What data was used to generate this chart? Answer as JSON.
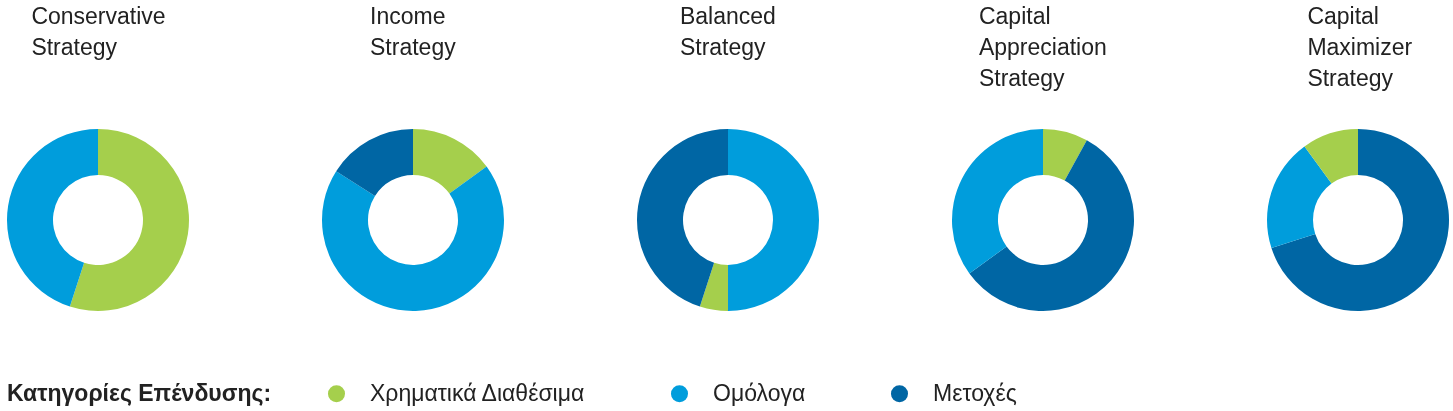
{
  "chart_data": [
    {
      "type": "donut",
      "title": "Conservative Strategy",
      "categories": [
        "Χρηματικά Διαθέσιμα",
        "Ομόλογα",
        "Μετοχές"
      ],
      "values": [
        55,
        45,
        null
      ],
      "colors": [
        "#a5cf4c",
        "#009ddc",
        "#0066a4"
      ],
      "legend": "bottom",
      "legend_title": "Κατηγορίες Επένδυσης:"
    },
    {
      "type": "donut",
      "title": "Income Strategy",
      "categories": [
        null,
        null,
        null
      ],
      "values": [
        15,
        69,
        16
      ],
      "colors": [
        "#a5cf4c",
        "#009ddc",
        "#0066a4"
      ]
    },
    {
      "type": "donut",
      "title": "Balanced Strategy",
      "categories": [
        null,
        null,
        null
      ],
      "values": [
        50,
        5,
        45
      ],
      "colors": [
        "#009ddc",
        "#a5cf4c",
        "#0066a4"
      ]
    },
    {
      "type": "donut",
      "title": "Capital Appreciation Strategy",
      "categories": [
        null,
        null,
        null
      ],
      "values": [
        8,
        57,
        35
      ],
      "colors": [
        "#a5cf4c",
        "#0066a4",
        "#009ddc"
      ]
    },
    {
      "type": "donut",
      "title": "Capital Maximizer Strategy",
      "categories": [
        null,
        null,
        null
      ],
      "values": [
        70,
        20,
        10
      ],
      "colors": [
        "#0066a4",
        "#009ddc",
        "#a5cf4c"
      ]
    }
  ]
}
